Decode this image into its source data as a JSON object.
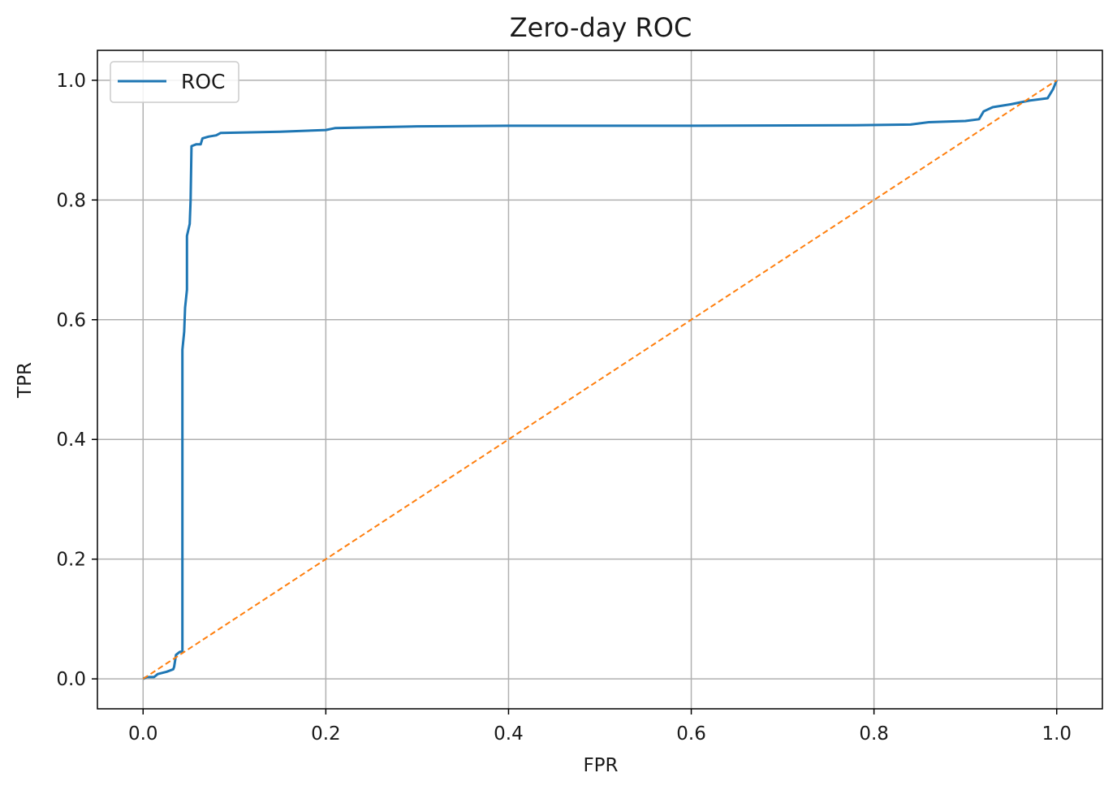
{
  "chart_data": {
    "type": "line",
    "title": "Zero-day ROC",
    "xlabel": "FPR",
    "ylabel": "TPR",
    "xlim": [
      -0.05,
      1.05
    ],
    "ylim": [
      -0.05,
      1.05
    ],
    "xticks": [
      0.0,
      0.2,
      0.4,
      0.6,
      0.8,
      1.0
    ],
    "yticks": [
      0.0,
      0.2,
      0.4,
      0.6,
      0.8,
      1.0
    ],
    "xtick_labels": [
      "0.0",
      "0.2",
      "0.4",
      "0.6",
      "0.8",
      "1.0"
    ],
    "ytick_labels": [
      "0.0",
      "0.2",
      "0.4",
      "0.6",
      "0.8",
      "1.0"
    ],
    "grid": true,
    "legend_position": "top-left",
    "series": [
      {
        "name": "ROC",
        "color": "#1f77b4",
        "style": "solid",
        "points": [
          [
            0.0,
            0.0
          ],
          [
            0.004,
            0.003
          ],
          [
            0.012,
            0.003
          ],
          [
            0.016,
            0.008
          ],
          [
            0.026,
            0.012
          ],
          [
            0.033,
            0.016
          ],
          [
            0.034,
            0.02
          ],
          [
            0.036,
            0.04
          ],
          [
            0.04,
            0.045
          ],
          [
            0.043,
            0.046
          ],
          [
            0.043,
            0.55
          ],
          [
            0.045,
            0.58
          ],
          [
            0.046,
            0.62
          ],
          [
            0.048,
            0.65
          ],
          [
            0.048,
            0.74
          ],
          [
            0.051,
            0.76
          ],
          [
            0.052,
            0.8
          ],
          [
            0.053,
            0.89
          ],
          [
            0.058,
            0.893
          ],
          [
            0.063,
            0.893
          ],
          [
            0.065,
            0.903
          ],
          [
            0.072,
            0.906
          ],
          [
            0.08,
            0.908
          ],
          [
            0.085,
            0.912
          ],
          [
            0.15,
            0.914
          ],
          [
            0.2,
            0.917
          ],
          [
            0.21,
            0.92
          ],
          [
            0.3,
            0.923
          ],
          [
            0.4,
            0.924
          ],
          [
            0.6,
            0.924
          ],
          [
            0.78,
            0.925
          ],
          [
            0.84,
            0.926
          ],
          [
            0.86,
            0.93
          ],
          [
            0.9,
            0.932
          ],
          [
            0.915,
            0.935
          ],
          [
            0.92,
            0.948
          ],
          [
            0.93,
            0.955
          ],
          [
            0.95,
            0.96
          ],
          [
            0.97,
            0.966
          ],
          [
            0.99,
            0.97
          ],
          [
            0.996,
            0.985
          ],
          [
            1.0,
            1.0
          ]
        ]
      },
      {
        "name": "",
        "color": "#ff7f0e",
        "style": "dashed",
        "points": [
          [
            0.0,
            0.0
          ],
          [
            1.0,
            1.0
          ]
        ]
      }
    ]
  }
}
